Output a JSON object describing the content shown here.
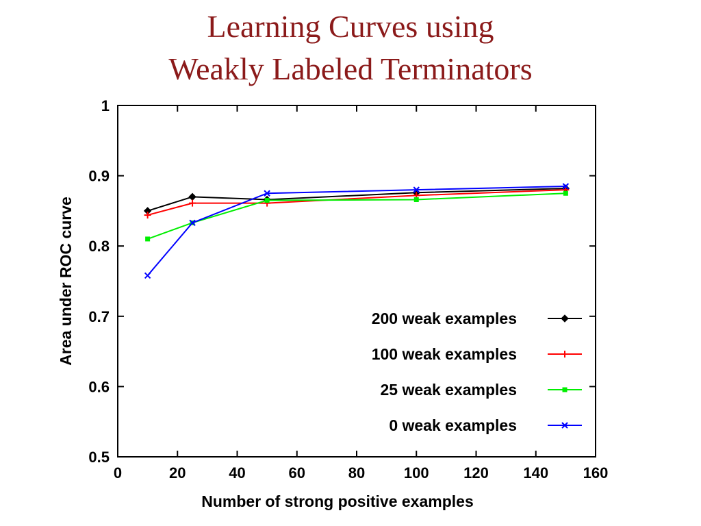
{
  "title_lines": [
    "Learning Curves using",
    "Weakly Labeled Terminators"
  ],
  "chart_data": {
    "type": "line",
    "xlabel": "Number of strong positive examples",
    "ylabel": "Area under ROC curve",
    "xlim": [
      0,
      160
    ],
    "ylim": [
      0.5,
      1
    ],
    "x_ticks": [
      "0",
      "20",
      "40",
      "60",
      "80",
      "100",
      "120",
      "140",
      "160"
    ],
    "y_ticks": [
      "0.5",
      "0.6",
      "0.7",
      "0.8",
      "0.9",
      "1"
    ],
    "grid": false,
    "legend_position": "bottom-right",
    "x": [
      10,
      25,
      50,
      100,
      150
    ],
    "series": [
      {
        "name": "200 weak examples",
        "color": "#000000",
        "marker": "diamond",
        "values": [
          0.85,
          0.87,
          0.866,
          0.876,
          0.882
        ]
      },
      {
        "name": "100 weak examples",
        "color": "#ff0000",
        "marker": "plus",
        "values": [
          0.844,
          0.861,
          0.861,
          0.872,
          0.88
        ]
      },
      {
        "name": "25 weak examples",
        "color": "#00ee00",
        "marker": "square",
        "values": [
          0.81,
          0.833,
          0.865,
          0.866,
          0.875
        ]
      },
      {
        "name": "0 weak examples",
        "color": "#0000ff",
        "marker": "cross",
        "values": [
          0.758,
          0.833,
          0.875,
          0.88,
          0.885
        ]
      }
    ]
  }
}
